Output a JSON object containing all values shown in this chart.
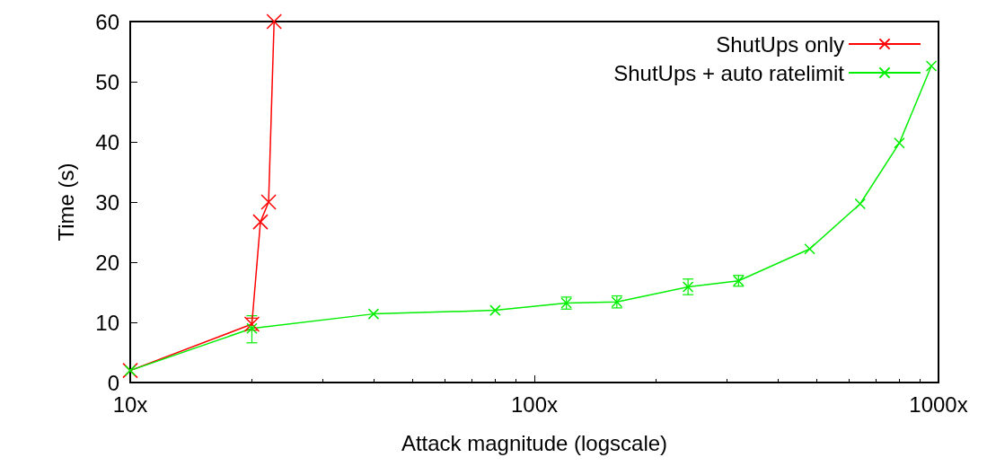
{
  "chart_data": {
    "type": "line",
    "xlabel": "Attack magnitude (logscale)",
    "ylabel": "Time (s)",
    "log": "x",
    "xlim": [
      10,
      1000
    ],
    "xticks": [
      {
        "value": 10,
        "label": "10x"
      },
      {
        "value": 100,
        "label": "100x"
      },
      {
        "value": 1000,
        "label": "1000x"
      }
    ],
    "ylim": [
      0,
      60
    ],
    "yticks": [
      0,
      10,
      20,
      30,
      40,
      50,
      60
    ],
    "grid": false,
    "legend": "top right",
    "marker": "cross",
    "series": [
      {
        "name": "ShutUps only",
        "color": "#ff0000",
        "x": [
          10,
          20,
          21,
          22,
          22.7
        ],
        "values": [
          2,
          9.7,
          26.7,
          30,
          60
        ],
        "errors": [
          null,
          1,
          null,
          null,
          null
        ]
      },
      {
        "name": "ShutUps + auto ratelimit",
        "color": "#00ee00",
        "x": [
          10,
          20,
          40,
          80,
          120,
          160,
          240,
          320,
          480,
          640,
          800,
          960
        ],
        "values": [
          2,
          9,
          11.4,
          12,
          13.2,
          13.4,
          15.9,
          16.9,
          22.2,
          29.7,
          39.8,
          52.6
        ],
        "errors": [
          null,
          [
            6.6,
            11.1
          ],
          null,
          null,
          1,
          1,
          1.3,
          0.9,
          null,
          null,
          null,
          null
        ]
      }
    ]
  }
}
